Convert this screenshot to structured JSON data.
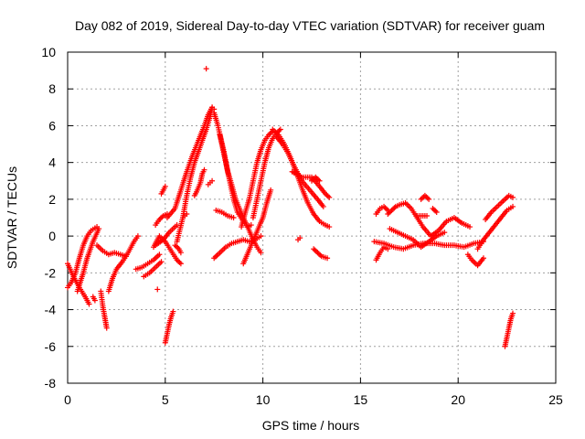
{
  "chart_data": {
    "type": "scatter",
    "title": "Day 082 of 2019, Sidereal Day-to-day VTEC variation (SDTVAR) for receiver guam",
    "xlabel": "GPS time / hours",
    "ylabel": "SDTVAR / TECUs",
    "xlim": [
      0,
      25
    ],
    "ylim": [
      -8,
      10
    ],
    "xticks": [
      0,
      5,
      10,
      15,
      20,
      25
    ],
    "yticks": [
      -8,
      -6,
      -4,
      -2,
      0,
      2,
      4,
      6,
      8,
      10
    ],
    "grid": true,
    "marker": "+",
    "series": [
      {
        "name": "SDTVAR",
        "color": "#ff0000",
        "tracks": [
          [
            [
              0.0,
              -1.5
            ],
            [
              0.3,
              -2.2
            ],
            [
              0.6,
              -2.8
            ],
            [
              0.9,
              -3.3
            ],
            [
              1.1,
              -3.7
            ]
          ],
          [
            [
              0.0,
              -2.8
            ],
            [
              0.2,
              -2.5
            ],
            [
              0.4,
              -2.0
            ],
            [
              0.6,
              -1.2
            ],
            [
              0.8,
              -0.5
            ],
            [
              1.0,
              0.0
            ],
            [
              1.2,
              0.3
            ],
            [
              1.5,
              0.5
            ]
          ],
          [
            [
              0.5,
              -3.0
            ],
            [
              0.8,
              -2.0
            ],
            [
              1.0,
              -1.2
            ],
            [
              1.3,
              -0.3
            ],
            [
              1.6,
              0.4
            ]
          ],
          [
            [
              1.3,
              -3.3
            ],
            [
              1.4,
              -3.5
            ]
          ],
          [
            [
              1.7,
              -3.0
            ],
            [
              1.8,
              -3.8
            ],
            [
              1.9,
              -4.4
            ],
            [
              2.0,
              -5.0
            ]
          ],
          [
            [
              1.5,
              -0.5
            ],
            [
              1.8,
              -0.8
            ],
            [
              2.1,
              -1.0
            ],
            [
              2.4,
              -0.9
            ],
            [
              2.7,
              -1.0
            ],
            [
              3.0,
              -1.1
            ]
          ],
          [
            [
              2.1,
              -3.0
            ],
            [
              2.3,
              -2.3
            ],
            [
              2.5,
              -1.8
            ],
            [
              2.8,
              -1.4
            ],
            [
              3.1,
              -0.9
            ],
            [
              3.4,
              -0.3
            ],
            [
              3.6,
              0.0
            ]
          ],
          [
            [
              3.5,
              -1.8
            ],
            [
              3.8,
              -1.7
            ],
            [
              4.1,
              -1.5
            ],
            [
              4.4,
              -1.3
            ],
            [
              4.7,
              -1.0
            ]
          ],
          [
            [
              3.9,
              -2.2
            ],
            [
              4.2,
              -2.0
            ],
            [
              4.5,
              -1.7
            ],
            [
              4.8,
              -1.4
            ]
          ],
          [
            [
              4.5,
              -0.5
            ],
            [
              4.9,
              -0.2
            ],
            [
              5.2,
              0.2
            ],
            [
              5.6,
              0.6
            ]
          ],
          [
            [
              4.4,
              -0.6
            ],
            [
              4.7,
              0.0
            ],
            [
              5.0,
              -0.3
            ],
            [
              5.3,
              -0.8
            ],
            [
              5.6,
              -1.3
            ],
            [
              5.8,
              -1.5
            ]
          ],
          [
            [
              4.5,
              0.6
            ],
            [
              4.7,
              0.9
            ],
            [
              4.9,
              1.1
            ],
            [
              5.1,
              1.2
            ]
          ],
          [
            [
              4.8,
              2.3
            ],
            [
              4.9,
              2.5
            ],
            [
              5.0,
              2.7
            ]
          ],
          [
            [
              5.0,
              -5.8
            ],
            [
              5.1,
              -5.3
            ],
            [
              5.2,
              -4.8
            ],
            [
              5.3,
              -4.4
            ],
            [
              5.4,
              -4.1
            ]
          ],
          [
            [
              4.6,
              -2.9
            ]
          ],
          [
            [
              5.1,
              1.0
            ],
            [
              5.5,
              1.5
            ],
            [
              5.8,
              2.5
            ],
            [
              6.1,
              3.5
            ],
            [
              6.4,
              4.4
            ],
            [
              6.7,
              5.2
            ],
            [
              7.0,
              6.0
            ],
            [
              7.2,
              6.6
            ],
            [
              7.4,
              7.0
            ],
            [
              7.5,
              6.9
            ]
          ],
          [
            [
              5.6,
              -0.3
            ],
            [
              5.9,
              1.0
            ],
            [
              6.1,
              2.2
            ],
            [
              6.3,
              3.2
            ],
            [
              6.5,
              4.0
            ],
            [
              6.7,
              4.6
            ],
            [
              6.9,
              5.2
            ],
            [
              7.1,
              5.8
            ],
            [
              7.3,
              6.5
            ],
            [
              7.4,
              7.0
            ]
          ],
          [
            [
              5.5,
              -0.5
            ],
            [
              5.7,
              -0.7
            ],
            [
              5.8,
              -0.9
            ]
          ],
          [
            [
              6.0,
              1.1
            ],
            [
              6.1,
              1.2
            ]
          ],
          [
            [
              6.5,
              2.2
            ],
            [
              6.6,
              2.4
            ],
            [
              6.8,
              2.9
            ],
            [
              6.9,
              3.4
            ],
            [
              7.0,
              3.6
            ]
          ],
          [
            [
              7.1,
              9.1
            ]
          ],
          [
            [
              7.2,
              2.8
            ],
            [
              7.3,
              2.9
            ],
            [
              7.4,
              3.0
            ]
          ],
          [
            [
              7.5,
              6.7
            ],
            [
              7.7,
              6.0
            ],
            [
              7.9,
              5.0
            ],
            [
              8.1,
              4.0
            ],
            [
              8.3,
              3.0
            ],
            [
              8.5,
              2.0
            ],
            [
              8.7,
              1.3
            ],
            [
              9.0,
              0.8
            ],
            [
              9.2,
              0.5
            ],
            [
              9.4,
              0.6
            ]
          ],
          [
            [
              7.8,
              5.5
            ],
            [
              8.0,
              4.6
            ],
            [
              8.2,
              3.5
            ],
            [
              8.4,
              2.8
            ],
            [
              8.6,
              2.0
            ],
            [
              8.8,
              1.5
            ],
            [
              9.0,
              1.0
            ],
            [
              9.3,
              0.3
            ],
            [
              9.5,
              -0.2
            ],
            [
              9.7,
              -0.6
            ],
            [
              9.9,
              -0.9
            ]
          ],
          [
            [
              7.5,
              -1.2
            ],
            [
              7.8,
              -0.9
            ],
            [
              8.1,
              -0.6
            ],
            [
              8.4,
              -0.4
            ],
            [
              8.7,
              -0.3
            ],
            [
              9.0,
              -0.2
            ],
            [
              9.3,
              -0.3
            ],
            [
              9.6,
              -0.2
            ],
            [
              9.9,
              0.0
            ]
          ],
          [
            [
              7.6,
              1.4
            ],
            [
              7.9,
              1.3
            ],
            [
              8.2,
              1.1
            ],
            [
              8.5,
              1.0
            ]
          ],
          [
            [
              9.0,
              -1.5
            ],
            [
              9.2,
              -1.0
            ],
            [
              9.4,
              -0.5
            ],
            [
              9.6,
              0.0
            ],
            [
              9.8,
              0.5
            ],
            [
              10.0,
              1.0
            ],
            [
              10.2,
              1.8
            ],
            [
              10.4,
              2.5
            ]
          ],
          [
            [
              8.9,
              0.5
            ],
            [
              9.1,
              1.3
            ],
            [
              9.3,
              2.0
            ],
            [
              9.5,
              3.0
            ],
            [
              9.7,
              4.0
            ],
            [
              9.9,
              4.7
            ],
            [
              10.1,
              5.2
            ],
            [
              10.3,
              5.5
            ],
            [
              10.5,
              5.7
            ]
          ],
          [
            [
              9.5,
              1.0
            ],
            [
              9.7,
              2.0
            ],
            [
              9.9,
              3.0
            ],
            [
              10.1,
              4.0
            ],
            [
              10.3,
              4.8
            ],
            [
              10.5,
              5.3
            ],
            [
              10.7,
              5.6
            ],
            [
              10.9,
              5.8
            ]
          ],
          [
            [
              10.5,
              5.8
            ],
            [
              10.8,
              5.5
            ],
            [
              11.1,
              5.0
            ],
            [
              11.4,
              4.3
            ],
            [
              11.7,
              3.5
            ],
            [
              12.0,
              2.6
            ],
            [
              12.3,
              1.8
            ],
            [
              12.6,
              1.2
            ],
            [
              12.9,
              0.8
            ],
            [
              13.2,
              0.6
            ],
            [
              13.4,
              0.5
            ]
          ],
          [
            [
              10.7,
              5.4
            ],
            [
              11.0,
              5.0
            ],
            [
              11.3,
              4.5
            ],
            [
              11.6,
              3.8
            ],
            [
              12.0,
              3.0
            ],
            [
              12.4,
              2.5
            ],
            [
              12.8,
              2.0
            ],
            [
              13.1,
              1.6
            ]
          ],
          [
            [
              11.5,
              3.5
            ],
            [
              12.0,
              3.2
            ],
            [
              12.5,
              3.2
            ],
            [
              12.9,
              2.7
            ],
            [
              13.2,
              2.3
            ],
            [
              13.4,
              2.1
            ]
          ],
          [
            [
              11.8,
              -0.2
            ],
            [
              11.9,
              -0.1
            ]
          ],
          [
            [
              12.5,
              3.0
            ],
            [
              12.7,
              3.2
            ],
            [
              12.9,
              3.0
            ]
          ],
          [
            [
              12.6,
              -0.7
            ],
            [
              12.8,
              -0.9
            ],
            [
              13.0,
              -1.1
            ],
            [
              13.3,
              -1.2
            ]
          ],
          [
            [
              15.8,
              -1.3
            ],
            [
              16.0,
              -0.9
            ],
            [
              16.2,
              -0.6
            ],
            [
              16.4,
              -0.7
            ]
          ],
          [
            [
              15.8,
              1.2
            ],
            [
              16.0,
              1.5
            ],
            [
              16.2,
              1.6
            ],
            [
              16.4,
              1.4
            ]
          ],
          [
            [
              15.7,
              -0.3
            ],
            [
              16.2,
              -0.4
            ],
            [
              16.7,
              -0.6
            ],
            [
              17.2,
              -0.7
            ],
            [
              17.7,
              -0.5
            ],
            [
              18.2,
              -0.4
            ],
            [
              18.8,
              -0.4
            ],
            [
              19.3,
              -0.5
            ],
            [
              19.8,
              -0.5
            ],
            [
              20.3,
              -0.6
            ],
            [
              20.8,
              -0.4
            ],
            [
              21.3,
              -0.3
            ]
          ],
          [
            [
              16.4,
              1.2
            ],
            [
              16.6,
              1.4
            ],
            [
              16.8,
              1.6
            ],
            [
              17.0,
              1.7
            ],
            [
              17.3,
              1.8
            ],
            [
              17.6,
              1.5
            ],
            [
              17.9,
              1.0
            ],
            [
              18.2,
              0.5
            ],
            [
              18.6,
              0.0
            ],
            [
              19.0,
              0.3
            ],
            [
              19.4,
              0.8
            ],
            [
              19.8,
              1.0
            ],
            [
              20.2,
              0.7
            ],
            [
              20.6,
              0.5
            ]
          ],
          [
            [
              16.5,
              0.4
            ],
            [
              16.9,
              0.2
            ],
            [
              17.3,
              0.0
            ],
            [
              17.7,
              -0.2
            ],
            [
              18.1,
              -0.6
            ],
            [
              18.5,
              -0.3
            ],
            [
              18.9,
              0.0
            ],
            [
              19.3,
              0.2
            ]
          ],
          [
            [
              17.9,
              1.1
            ],
            [
              18.2,
              1.1
            ],
            [
              18.4,
              1.1
            ]
          ],
          [
            [
              18.1,
              2.0
            ],
            [
              18.3,
              2.2
            ],
            [
              18.5,
              2.0
            ]
          ],
          [
            [
              18.7,
              1.5
            ],
            [
              18.9,
              1.3
            ]
          ],
          [
            [
              20.5,
              -1.0
            ],
            [
              20.7,
              -1.3
            ],
            [
              21.0,
              -1.6
            ],
            [
              21.3,
              -1.2
            ]
          ],
          [
            [
              21.0,
              -0.7
            ],
            [
              21.3,
              -0.2
            ],
            [
              21.6,
              0.2
            ],
            [
              21.9,
              0.6
            ],
            [
              22.2,
              1.0
            ],
            [
              22.5,
              1.4
            ],
            [
              22.8,
              1.6
            ]
          ],
          [
            [
              21.4,
              0.9
            ],
            [
              21.7,
              1.3
            ],
            [
              22.0,
              1.6
            ],
            [
              22.3,
              1.9
            ],
            [
              22.6,
              2.2
            ],
            [
              22.8,
              2.1
            ]
          ],
          [
            [
              22.4,
              -6.0
            ],
            [
              22.5,
              -5.5
            ],
            [
              22.6,
              -5.0
            ],
            [
              22.7,
              -4.5
            ],
            [
              22.8,
              -4.2
            ]
          ]
        ]
      }
    ]
  }
}
